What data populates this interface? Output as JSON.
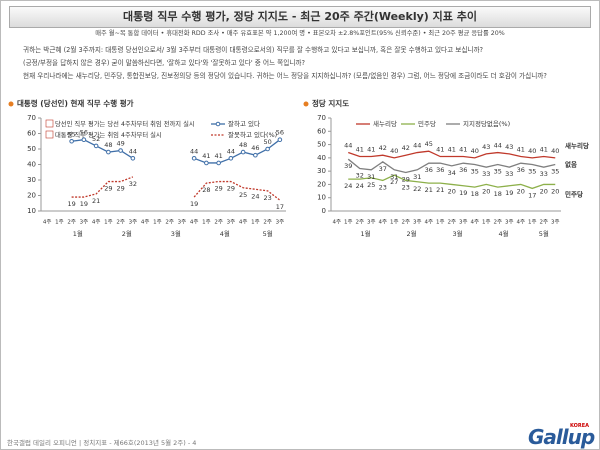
{
  "header": {
    "title": "대통령 직무 수행 평가, 정당 지지도 - 최근 20주 주간(Weekly) 지표 추이",
    "subtitle": "매주 월~목 통합 데이터 • 휴대전화 RDD 조사 • 매주 유효표본 약 1,200여 명 • 표본오차 ±2.8%포인트(95% 신뢰수준) • 최근 20주 평균 응답률 20%"
  },
  "questions": [
    "귀하는 박근혜 (2월 3주까지: 대통령 당선인으로서/ 3월 3주부터 대통령이 대통령으로서의) 직무를 잘 수행하고 있다고 보십니까, 혹은 잘못 수행하고 있다고 보십니까?",
    "(긍정/부정을 답하지 않은 경우) 굳이 말씀하신다면, '잘하고 있다'와 '잘못하고 있다' 중 어느 쪽입니까?",
    "현재 우리나라에는 새누리당, 민주당, 통합진보당, 진보정의당 등의 정당이 있습니다. 귀하는 어느 정당을 지지하십니까? (모름/없음인 경우) 그럼, 어느 정당에 조금이라도 더 호감이 가십니까?"
  ],
  "chart_data": [
    {
      "type": "line",
      "title": "대통령 (당선인) 현재 직무 수행 평가",
      "categories": [
        "4주",
        "1주",
        "2주",
        "3주",
        "4주",
        "1주",
        "2주",
        "3주",
        "4주",
        "1주",
        "2주",
        "3주",
        "4주",
        "1주",
        "2주",
        "3주",
        "4주",
        "1주",
        "2주",
        "3주"
      ],
      "months": [
        null,
        "1월",
        "1월",
        "1월",
        "1월",
        "2월",
        "2월",
        "2월",
        "2월",
        "3월",
        "3월",
        "3월",
        "3월",
        "4월",
        "4월",
        "4월",
        "4월",
        "5월",
        "5월",
        "5월"
      ],
      "ylim": [
        10,
        70
      ],
      "yticks": [
        10,
        20,
        30,
        40,
        50,
        60,
        70
      ],
      "grid": false,
      "annotations": [
        "당선인 직무 평가는 당선 4주차부터 취임 전까지 실시",
        "대통령 직무 평가는 취임 4주차부터 실시"
      ],
      "series": [
        {
          "name": "잘하고 있다",
          "color": "#3f6fa8",
          "dashed": false,
          "markers": true,
          "values": [
            null,
            null,
            55,
            56,
            52,
            48,
            49,
            44,
            null,
            null,
            null,
            null,
            44,
            41,
            41,
            44,
            48,
            46,
            50,
            56
          ]
        },
        {
          "name": "잘못하고 있다(%)",
          "color": "#c0392b",
          "dashed": true,
          "markers": false,
          "values": [
            null,
            null,
            19,
            19,
            21,
            29,
            29,
            32,
            null,
            null,
            null,
            null,
            19,
            28,
            29,
            29,
            25,
            24,
            23,
            17
          ]
        }
      ]
    },
    {
      "type": "line",
      "title": "정당 지지도",
      "categories": [
        "4주",
        "1주",
        "2주",
        "3주",
        "4주",
        "1주",
        "2주",
        "3주",
        "4주",
        "1주",
        "2주",
        "3주",
        "4주",
        "1주",
        "2주",
        "3주",
        "4주",
        "1주",
        "2주",
        "3주"
      ],
      "months": [
        null,
        "1월",
        "1월",
        "1월",
        "1월",
        "2월",
        "2월",
        "2월",
        "2월",
        "3월",
        "3월",
        "3월",
        "3월",
        "4월",
        "4월",
        "4월",
        "4월",
        "5월",
        "5월",
        "5월"
      ],
      "ylim": [
        0,
        70
      ],
      "yticks": [
        0,
        10,
        20,
        30,
        40,
        50,
        60,
        70
      ],
      "grid": false,
      "party_marks": [
        "새누리당",
        "없음",
        "민주당"
      ],
      "series": [
        {
          "name": "새누리당",
          "color": "#c0392b",
          "dashed": false,
          "markers": false,
          "values": [
            null,
            44,
            41,
            41,
            42,
            40,
            42,
            44,
            45,
            41,
            41,
            41,
            40,
            43,
            44,
            43,
            41,
            40,
            41,
            40
          ]
        },
        {
          "name": "민주당",
          "color": "#8db04a",
          "dashed": false,
          "markers": false,
          "values": [
            null,
            24,
            24,
            25,
            23,
            27,
            23,
            22,
            21,
            21,
            20,
            19,
            18,
            20,
            18,
            19,
            20,
            17,
            20,
            20
          ]
        },
        {
          "name": "지지정당없음(%)",
          "color": "#7f7f7f",
          "dashed": false,
          "markers": false,
          "values": [
            null,
            39,
            32,
            31,
            37,
            31,
            29,
            31,
            36,
            36,
            34,
            36,
            35,
            33,
            35,
            33,
            36,
            35,
            33,
            35
          ]
        }
      ]
    }
  ],
  "footer": "한국갤럽 데일리 오피니언 | 정치지표 - 제66호(2013년 5월 2주) - 4",
  "logo": {
    "name": "Gallup",
    "sub": "KOREA"
  }
}
